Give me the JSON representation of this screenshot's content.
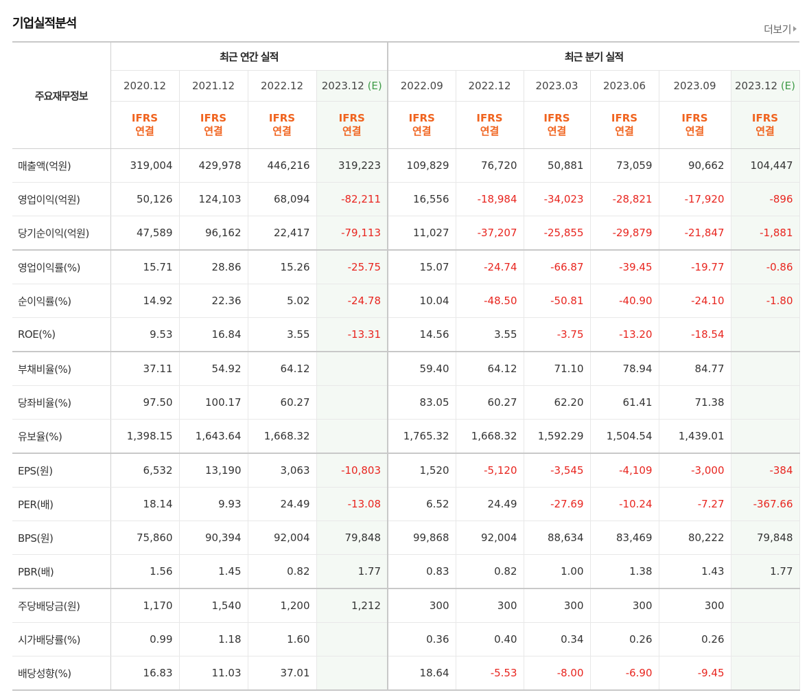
{
  "header": {
    "title": "기업실적분석",
    "more_label": "더보기"
  },
  "table": {
    "row_header_label": "주요재무정보",
    "group_annual": "최근 연간 실적",
    "group_quarter": "최근 분기 실적",
    "annual_periods": [
      {
        "date": "2020.12",
        "est": ""
      },
      {
        "date": "2021.12",
        "est": ""
      },
      {
        "date": "2022.12",
        "est": ""
      },
      {
        "date": "2023.12",
        "est": "(E)"
      }
    ],
    "quarter_periods": [
      {
        "date": "2022.09",
        "est": ""
      },
      {
        "date": "2022.12",
        "est": ""
      },
      {
        "date": "2023.03",
        "est": ""
      },
      {
        "date": "2023.06",
        "est": ""
      },
      {
        "date": "2023.09",
        "est": ""
      },
      {
        "date": "2023.12",
        "est": "(E)"
      }
    ],
    "ifrs_line1": "IFRS",
    "ifrs_line2": "연결",
    "rows": [
      {
        "label": "매출액(억원)",
        "values": [
          "319,004",
          "429,978",
          "446,216",
          "319,223",
          "109,829",
          "76,720",
          "50,881",
          "73,059",
          "90,662",
          "104,447"
        ]
      },
      {
        "label": "영업이익(억원)",
        "values": [
          "50,126",
          "124,103",
          "68,094",
          "-82,211",
          "16,556",
          "-18,984",
          "-34,023",
          "-28,821",
          "-17,920",
          "-896"
        ]
      },
      {
        "label": "당기순이익(억원)",
        "values": [
          "47,589",
          "96,162",
          "22,417",
          "-79,113",
          "11,027",
          "-37,207",
          "-25,855",
          "-29,879",
          "-21,847",
          "-1,881"
        ]
      },
      {
        "label": "영업이익률(%)",
        "values": [
          "15.71",
          "28.86",
          "15.26",
          "-25.75",
          "15.07",
          "-24.74",
          "-66.87",
          "-39.45",
          "-19.77",
          "-0.86"
        ]
      },
      {
        "label": "순이익률(%)",
        "values": [
          "14.92",
          "22.36",
          "5.02",
          "-24.78",
          "10.04",
          "-48.50",
          "-50.81",
          "-40.90",
          "-24.10",
          "-1.80"
        ]
      },
      {
        "label": "ROE(%)",
        "values": [
          "9.53",
          "16.84",
          "3.55",
          "-13.31",
          "14.56",
          "3.55",
          "-3.75",
          "-13.20",
          "-18.54",
          ""
        ]
      },
      {
        "label": "부채비율(%)",
        "values": [
          "37.11",
          "54.92",
          "64.12",
          "",
          "59.40",
          "64.12",
          "71.10",
          "78.94",
          "84.77",
          ""
        ]
      },
      {
        "label": "당좌비율(%)",
        "values": [
          "97.50",
          "100.17",
          "60.27",
          "",
          "83.05",
          "60.27",
          "62.20",
          "61.41",
          "71.38",
          ""
        ]
      },
      {
        "label": "유보율(%)",
        "values": [
          "1,398.15",
          "1,643.64",
          "1,668.32",
          "",
          "1,765.32",
          "1,668.32",
          "1,592.29",
          "1,504.54",
          "1,439.01",
          ""
        ]
      },
      {
        "label": "EPS(원)",
        "values": [
          "6,532",
          "13,190",
          "3,063",
          "-10,803",
          "1,520",
          "-5,120",
          "-3,545",
          "-4,109",
          "-3,000",
          "-384"
        ]
      },
      {
        "label": "PER(배)",
        "values": [
          "18.14",
          "9.93",
          "24.49",
          "-13.08",
          "6.52",
          "24.49",
          "-27.69",
          "-10.24",
          "-7.27",
          "-367.66"
        ]
      },
      {
        "label": "BPS(원)",
        "values": [
          "75,860",
          "90,394",
          "92,004",
          "79,848",
          "99,868",
          "92,004",
          "88,634",
          "83,469",
          "80,222",
          "79,848"
        ]
      },
      {
        "label": "PBR(배)",
        "values": [
          "1.56",
          "1.45",
          "0.82",
          "1.77",
          "0.83",
          "0.82",
          "1.00",
          "1.38",
          "1.43",
          "1.77"
        ]
      },
      {
        "label": "주당배당금(원)",
        "values": [
          "1,170",
          "1,540",
          "1,200",
          "1,212",
          "300",
          "300",
          "300",
          "300",
          "300",
          ""
        ]
      },
      {
        "label": "시가배당률(%)",
        "values": [
          "0.99",
          "1.18",
          "1.60",
          "",
          "0.36",
          "0.40",
          "0.34",
          "0.26",
          "0.26",
          ""
        ]
      },
      {
        "label": "배당성향(%)",
        "values": [
          "16.83",
          "11.03",
          "37.01",
          "",
          "18.64",
          "-5.53",
          "-8.00",
          "-6.90",
          "-9.45",
          ""
        ]
      }
    ],
    "group_end_rows": [
      2,
      5,
      8,
      12
    ],
    "colors": {
      "negative": "#e8251f",
      "ifrs": "#f0631e",
      "estimate_bg": "#f4f9f4",
      "estimate_tag": "#3e9b47"
    }
  }
}
